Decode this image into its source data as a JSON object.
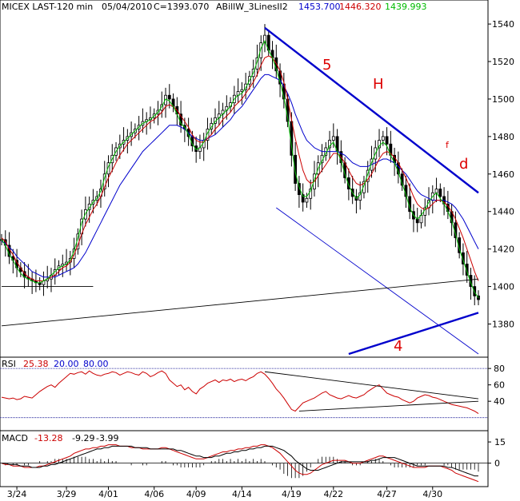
{
  "header": {
    "symbol": "MICEX LAST-120 min",
    "date": "05/04/2010",
    "close": "C=1393.070",
    "indicator": "ABillW_3LinesII2",
    "ma_blue": "1453.700",
    "ma_red": "1446.320",
    "ma_green": "1439.993"
  },
  "colors": {
    "ma_blue": "#0000cc",
    "ma_red": "#cc0000",
    "ma_green": "#00bb00",
    "candle": "#000000",
    "dotted_line": "#00008b",
    "annotation_red": "#dd0000",
    "annotation_blue": "#0000cc"
  },
  "chart_data": [
    {
      "type": "line",
      "panel": "price",
      "title": "",
      "y_ticks": [
        1380,
        1400,
        1420,
        1440,
        1460,
        1480,
        1500,
        1520,
        1540
      ],
      "ylim": [
        1367,
        1546
      ],
      "x_tick_labels": [
        "3/24",
        "3/29",
        "4/01",
        "4/06",
        "4/09",
        "4/14",
        "4/19",
        "4/22",
        "4/27",
        "4/30"
      ],
      "close": [
        1425,
        1422,
        1416,
        1414,
        1410,
        1408,
        1405,
        1404,
        1403,
        1402,
        1401,
        1403,
        1404,
        1406,
        1409,
        1411,
        1412,
        1413,
        1415,
        1420,
        1428,
        1436,
        1441,
        1444,
        1446,
        1448,
        1452,
        1460,
        1466,
        1470,
        1474,
        1476,
        1478,
        1480,
        1482,
        1484,
        1486,
        1488,
        1489,
        1490,
        1492,
        1494,
        1497,
        1502,
        1500,
        1496,
        1492,
        1486,
        1484,
        1480,
        1475,
        1472,
        1474,
        1478,
        1484,
        1487,
        1490,
        1492,
        1494,
        1496,
        1498,
        1502,
        1504,
        1505,
        1508,
        1512,
        1516,
        1522,
        1530,
        1534,
        1526,
        1522,
        1515,
        1508,
        1500,
        1488,
        1470,
        1455,
        1449,
        1445,
        1447,
        1452,
        1460,
        1466,
        1470,
        1474,
        1478,
        1480,
        1472,
        1466,
        1458,
        1452,
        1448,
        1446,
        1450,
        1456,
        1462,
        1468,
        1474,
        1478,
        1480,
        1476,
        1470,
        1466,
        1460,
        1454,
        1448,
        1440,
        1436,
        1434,
        1438,
        1442,
        1446,
        1450,
        1452,
        1448,
        1444,
        1440,
        1434,
        1426,
        1418,
        1412,
        1406,
        1400,
        1395,
        1393
      ],
      "series": [
        {
          "name": "1453.700",
          "color": "#0000cc",
          "values": [
            1424,
            1423,
            1421,
            1419,
            1416,
            1414,
            1412,
            1410,
            1408,
            1407,
            1406,
            1405,
            1405,
            1405,
            1405,
            1406,
            1407,
            1408,
            1409,
            1410,
            1412,
            1415,
            1418,
            1422,
            1426,
            1430,
            1434,
            1438,
            1442,
            1446,
            1450,
            1454,
            1457,
            1460,
            1463,
            1466,
            1469,
            1472,
            1474,
            1476,
            1478,
            1480,
            1482,
            1484,
            1486,
            1486,
            1486,
            1485,
            1484,
            1482,
            1480,
            1479,
            1478,
            1478,
            1479,
            1480,
            1481,
            1483,
            1485,
            1487,
            1489,
            1492,
            1494,
            1496,
            1499,
            1502,
            1505,
            1508,
            1511,
            1513,
            1513,
            1512,
            1511,
            1510,
            1507,
            1503,
            1498,
            1492,
            1487,
            1482,
            1478,
            1476,
            1474,
            1473,
            1472,
            1472,
            1472,
            1472,
            1472,
            1471,
            1470,
            1468,
            1466,
            1465,
            1464,
            1464,
            1464,
            1465,
            1466,
            1467,
            1468,
            1468,
            1467,
            1466,
            1464,
            1462,
            1460,
            1457,
            1454,
            1451,
            1449,
            1448,
            1447,
            1446,
            1446,
            1446,
            1446,
            1445,
            1444,
            1442,
            1439,
            1436,
            1432,
            1428,
            1424,
            1420
          ]
        },
        {
          "name": "1446.320",
          "color": "#cc0000",
          "values": [
            1426,
            1424,
            1420,
            1417,
            1413,
            1410,
            1407,
            1405,
            1404,
            1403,
            1403,
            1403,
            1404,
            1405,
            1406,
            1408,
            1410,
            1411,
            1413,
            1417,
            1422,
            1428,
            1433,
            1437,
            1441,
            1444,
            1448,
            1453,
            1458,
            1462,
            1466,
            1470,
            1473,
            1476,
            1478,
            1480,
            1482,
            1484,
            1486,
            1488,
            1489,
            1491,
            1493,
            1496,
            1497,
            1496,
            1494,
            1491,
            1488,
            1485,
            1481,
            1478,
            1477,
            1477,
            1479,
            1481,
            1484,
            1486,
            1489,
            1491,
            1493,
            1496,
            1498,
            1500,
            1503,
            1506,
            1509,
            1513,
            1518,
            1522,
            1523,
            1522,
            1519,
            1515,
            1509,
            1500,
            1489,
            1479,
            1470,
            1462,
            1457,
            1455,
            1456,
            1459,
            1462,
            1465,
            1468,
            1471,
            1471,
            1469,
            1466,
            1462,
            1458,
            1455,
            1454,
            1455,
            1457,
            1460,
            1464,
            1468,
            1471,
            1472,
            1471,
            1469,
            1466,
            1462,
            1458,
            1453,
            1448,
            1444,
            1442,
            1441,
            1442,
            1444,
            1446,
            1446,
            1445,
            1443,
            1440,
            1436,
            1431,
            1426,
            1420,
            1414,
            1408,
            1403
          ]
        },
        {
          "name": "1439.993",
          "color": "#00bb00",
          "values": [
            1425,
            1422,
            1417,
            1414,
            1410,
            1407,
            1405,
            1404,
            1403,
            1402,
            1402,
            1403,
            1404,
            1406,
            1408,
            1410,
            1411,
            1412,
            1414,
            1419,
            1426,
            1434,
            1439,
            1442,
            1445,
            1447,
            1451,
            1458,
            1464,
            1468,
            1472,
            1475,
            1477,
            1479,
            1481,
            1483,
            1485,
            1487,
            1488,
            1489,
            1491,
            1493,
            1496,
            1500,
            1499,
            1496,
            1492,
            1487,
            1485,
            1481,
            1476,
            1473,
            1474,
            1477,
            1482,
            1485,
            1488,
            1490,
            1492,
            1494,
            1496,
            1500,
            1502,
            1503,
            1506,
            1510,
            1514,
            1520,
            1527,
            1531,
            1526,
            1522,
            1516,
            1509,
            1501,
            1490,
            1475,
            1461,
            1453,
            1448,
            1448,
            1451,
            1457,
            1463,
            1467,
            1471,
            1475,
            1477,
            1472,
            1467,
            1460,
            1454,
            1450,
            1447,
            1449,
            1454,
            1460,
            1466,
            1471,
            1475,
            1477,
            1475,
            1470,
            1466,
            1461,
            1455,
            1449,
            1442,
            1438,
            1436,
            1438,
            1441,
            1445,
            1448,
            1450,
            1447,
            1444,
            1440,
            1435,
            1428,
            1420,
            1414,
            1408,
            1402,
            1397,
            1394
          ]
        }
      ]
    },
    {
      "type": "line",
      "panel": "rsi",
      "title": "RSI",
      "y_ticks": [
        40,
        60,
        80
      ],
      "ylim": [
        8,
        86
      ],
      "levels": [
        20,
        80
      ],
      "series": [
        {
          "name": "25.38",
          "color": "#cc0000",
          "values": [
            45,
            44,
            43,
            44,
            42,
            43,
            46,
            45,
            44,
            48,
            52,
            55,
            58,
            60,
            57,
            62,
            66,
            70,
            74,
            73,
            75,
            76,
            73,
            77,
            74,
            72,
            71,
            73,
            74,
            76,
            75,
            72,
            74,
            76,
            75,
            73,
            72,
            76,
            74,
            70,
            72,
            75,
            77,
            74,
            66,
            62,
            58,
            60,
            54,
            57,
            52,
            49,
            55,
            58,
            62,
            64,
            66,
            63,
            66,
            65,
            67,
            64,
            66,
            67,
            65,
            68,
            70,
            74,
            76,
            73,
            68,
            62,
            55,
            50,
            44,
            37,
            30,
            28,
            33,
            38,
            40,
            42,
            44,
            47,
            50,
            52,
            48,
            46,
            44,
            43,
            45,
            47,
            45,
            44,
            46,
            48,
            52,
            55,
            58,
            60,
            55,
            50,
            48,
            46,
            45,
            42,
            40,
            38,
            40,
            44,
            46,
            48,
            47,
            45,
            44,
            42,
            40,
            38,
            36,
            35,
            34,
            33,
            32,
            30,
            28,
            25
          ]
        }
      ],
      "values_header": [
        "25.38",
        "20.00",
        "80.00"
      ]
    },
    {
      "type": "line",
      "panel": "macd",
      "title": "MACD",
      "y_ticks": [
        0,
        15
      ],
      "ylim": [
        -16,
        19
      ],
      "values_header": [
        "-13.28",
        "-9.29",
        "-3.99"
      ],
      "series": [
        {
          "name": "-13.28",
          "color": "#cc0000",
          "values": [
            0,
            -1,
            -1,
            -2,
            -2,
            -2,
            -3,
            -3,
            -3,
            -3,
            -2,
            -2,
            -1,
            0,
            1,
            2,
            3,
            4,
            5,
            7,
            8,
            9,
            10,
            10,
            11,
            11,
            12,
            12,
            13,
            13,
            13,
            12,
            12,
            12,
            11,
            11,
            11,
            10,
            10,
            10,
            10,
            10,
            11,
            11,
            10,
            9,
            8,
            7,
            6,
            5,
            4,
            3,
            3,
            3,
            4,
            5,
            6,
            7,
            8,
            8,
            9,
            9,
            10,
            10,
            11,
            11,
            12,
            12,
            13,
            13,
            12,
            11,
            9,
            7,
            4,
            1,
            -2,
            -5,
            -7,
            -8,
            -8,
            -7,
            -5,
            -3,
            -1,
            0,
            1,
            2,
            2,
            2,
            2,
            1,
            0,
            0,
            0,
            1,
            2,
            3,
            4,
            5,
            5,
            4,
            3,
            2,
            1,
            0,
            -1,
            -2,
            -3,
            -3,
            -3,
            -3,
            -2,
            -2,
            -2,
            -2,
            -3,
            -4,
            -5,
            -7,
            -8,
            -9,
            -10,
            -11,
            -12,
            -13
          ]
        },
        {
          "name": "-9.29",
          "color": "#000000",
          "values": [
            0,
            0,
            -1,
            -1,
            -1,
            -2,
            -2,
            -2,
            -3,
            -3,
            -3,
            -2,
            -2,
            -1,
            -1,
            0,
            1,
            2,
            3,
            4,
            5,
            6,
            7,
            8,
            9,
            10,
            10,
            11,
            11,
            12,
            12,
            12,
            12,
            12,
            12,
            11,
            11,
            11,
            11,
            10,
            10,
            10,
            10,
            10,
            10,
            10,
            9,
            9,
            8,
            7,
            6,
            5,
            5,
            4,
            4,
            4,
            5,
            5,
            6,
            7,
            7,
            8,
            8,
            9,
            9,
            10,
            10,
            11,
            11,
            12,
            12,
            12,
            11,
            10,
            9,
            7,
            5,
            2,
            0,
            -2,
            -4,
            -5,
            -5,
            -5,
            -4,
            -3,
            -2,
            -1,
            0,
            1,
            1,
            1,
            1,
            1,
            1,
            1,
            1,
            2,
            2,
            3,
            4,
            4,
            4,
            4,
            3,
            2,
            1,
            0,
            -1,
            -2,
            -2,
            -2,
            -2,
            -2,
            -2,
            -2,
            -2,
            -3,
            -3,
            -4,
            -5,
            -6,
            -7,
            -8,
            -9,
            -9
          ]
        }
      ]
    }
  ],
  "annotations": {
    "label_5": "5",
    "label_H": "H",
    "label_f": "f",
    "label_d": "d",
    "label_4": "4"
  }
}
